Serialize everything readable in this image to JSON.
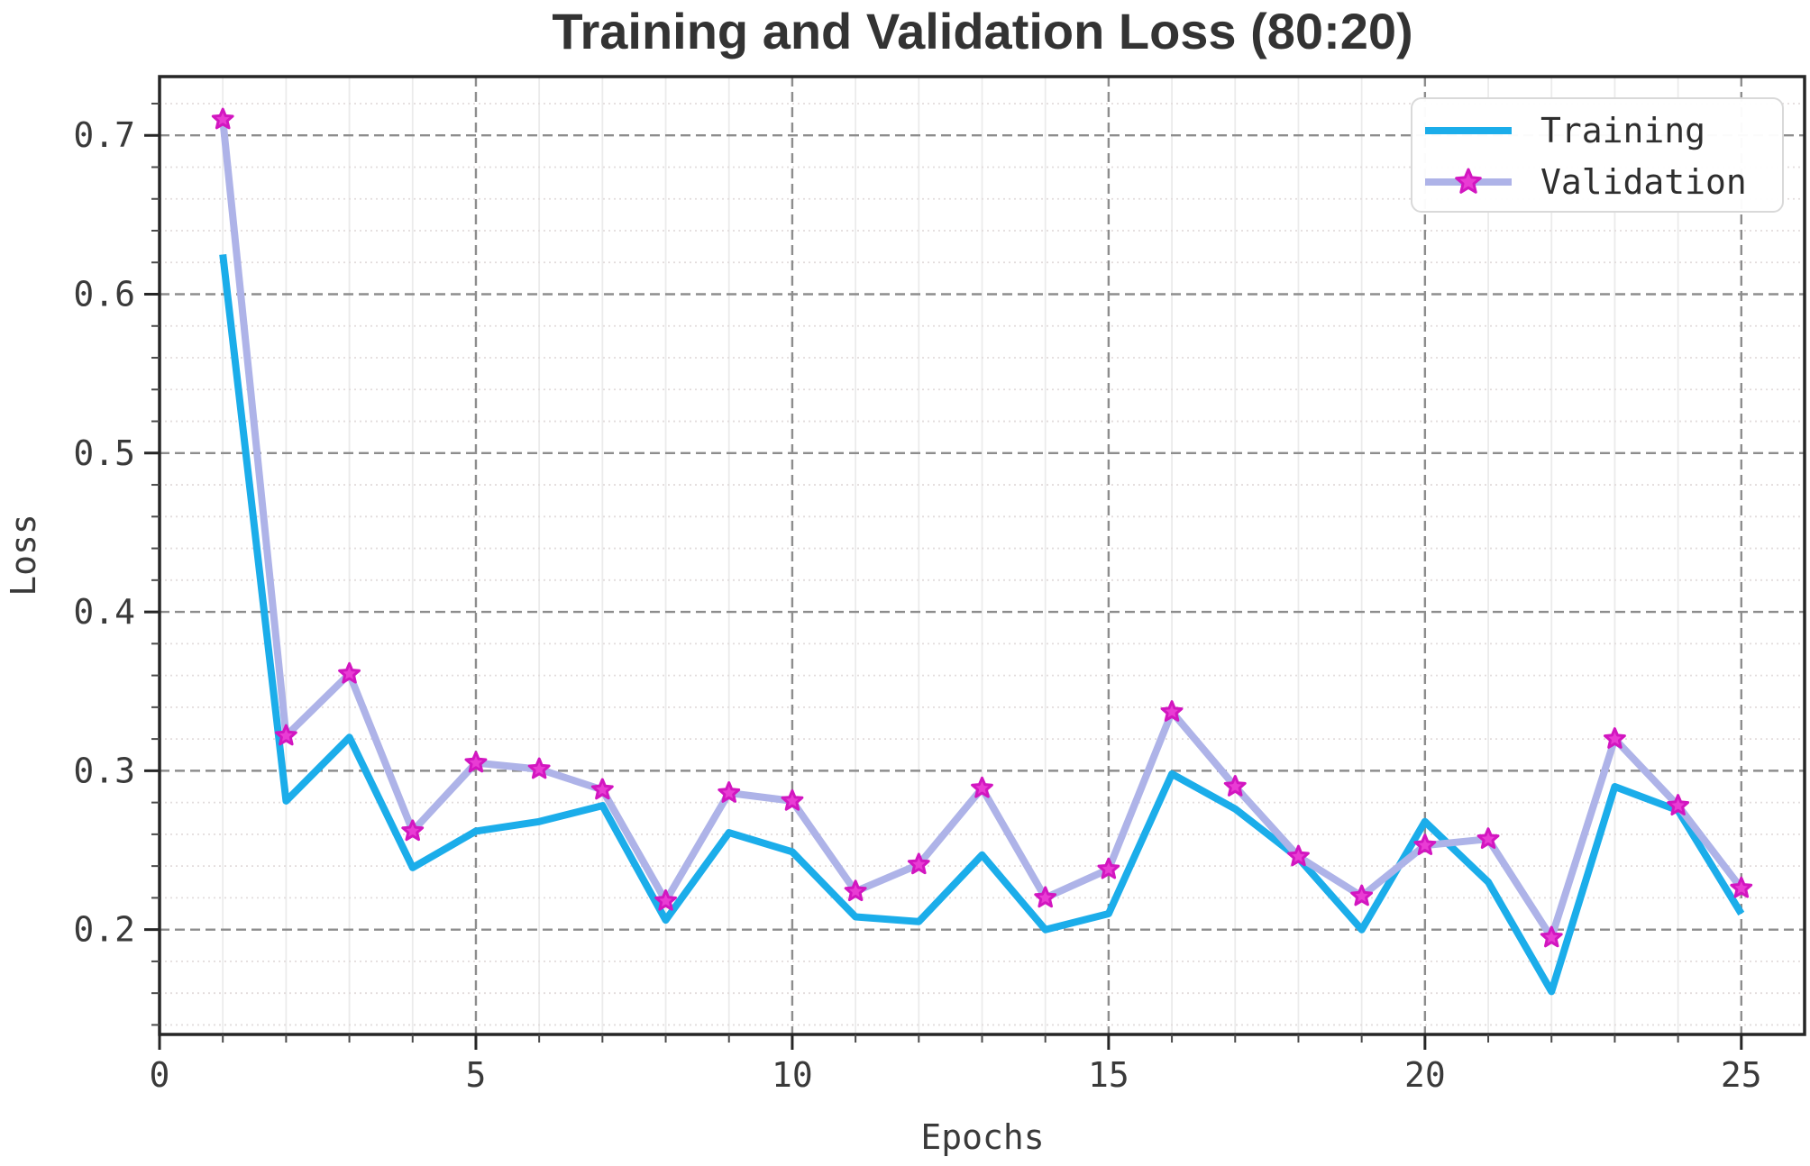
{
  "chart_data": {
    "type": "line",
    "title": "Training and Validation Loss (80:20)",
    "xlabel": "Epochs",
    "ylabel": "Loss",
    "x": [
      1,
      2,
      3,
      4,
      5,
      6,
      7,
      8,
      9,
      10,
      11,
      12,
      13,
      14,
      15,
      16,
      17,
      18,
      19,
      20,
      21,
      22,
      23,
      24,
      25
    ],
    "series": [
      {
        "name": "Training",
        "color": "#1badea",
        "line_width": 8,
        "marker": "none",
        "values": [
          0.625,
          0.281,
          0.321,
          0.239,
          0.262,
          0.268,
          0.278,
          0.206,
          0.261,
          0.249,
          0.208,
          0.205,
          0.247,
          0.2,
          0.21,
          0.298,
          0.276,
          0.245,
          0.2,
          0.268,
          0.23,
          0.161,
          0.29,
          0.275,
          0.21
        ]
      },
      {
        "name": "Validation",
        "color": "#aeb3e8",
        "line_width": 8,
        "marker": "star",
        "marker_fill": "#e93cd4",
        "marker_edge": "#d216c0",
        "values": [
          0.71,
          0.322,
          0.361,
          0.262,
          0.305,
          0.301,
          0.288,
          0.218,
          0.286,
          0.281,
          0.224,
          0.241,
          0.289,
          0.22,
          0.238,
          0.337,
          0.29,
          0.246,
          0.221,
          0.253,
          0.257,
          0.195,
          0.32,
          0.278,
          0.226
        ]
      }
    ],
    "axes": {
      "xlim": [
        0,
        26
      ],
      "ylim": [
        0.134,
        0.737
      ],
      "x_major_ticks": [
        0,
        5,
        10,
        15,
        20,
        25
      ],
      "y_major_ticks": [
        0.2,
        0.3,
        0.4,
        0.5,
        0.6,
        0.7
      ],
      "x_minor_step": 1,
      "y_minor_step": 0.02,
      "grid": "on",
      "grid_major_color": "#8d8d8d",
      "grid_minor_h_color": "#e2dcdc",
      "grid_minor_v_color": "#ebebeb",
      "spine_color": "#262626",
      "tick_label_color": "#3a3a3a"
    },
    "legend_position": "top-right"
  }
}
